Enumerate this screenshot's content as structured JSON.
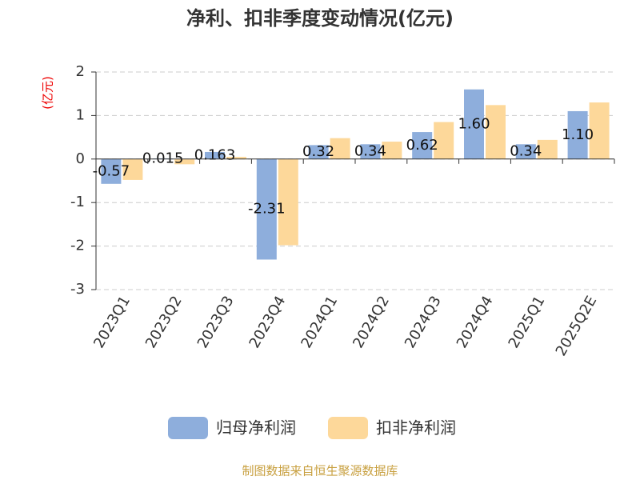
{
  "chart_data": {
    "type": "bar",
    "title": "净利、扣非季度变动情况(亿元)",
    "y_label": "(亿元)",
    "categories": [
      "2023Q1",
      "2023Q2",
      "2023Q3",
      "2023Q4",
      "2024Q1",
      "2024Q2",
      "2024Q3",
      "2024Q4",
      "2025Q1",
      "2025Q2E"
    ],
    "series": [
      {
        "name": "归母净利润",
        "color": "#8eaedc",
        "values": [
          -0.57,
          0.015,
          0.163,
          -2.31,
          0.32,
          0.34,
          0.62,
          1.6,
          0.34,
          1.1
        ],
        "value_labels": [
          "-0.57",
          "0.015",
          "0.163",
          "-2.31",
          "0.32",
          "0.34",
          "0.62",
          "1.60",
          "0.34",
          "1.10"
        ]
      },
      {
        "name": "扣非净利润",
        "color": "#fdd89a",
        "values": [
          -0.48,
          -0.12,
          0.05,
          -1.98,
          0.48,
          0.4,
          0.85,
          1.24,
          0.44,
          1.3
        ]
      }
    ],
    "ylim": [
      -3,
      2
    ],
    "yticks": [
      -3,
      -2,
      -1,
      0,
      1,
      2
    ],
    "grid": true,
    "source": "制图数据来自恒生聚源数据库"
  }
}
